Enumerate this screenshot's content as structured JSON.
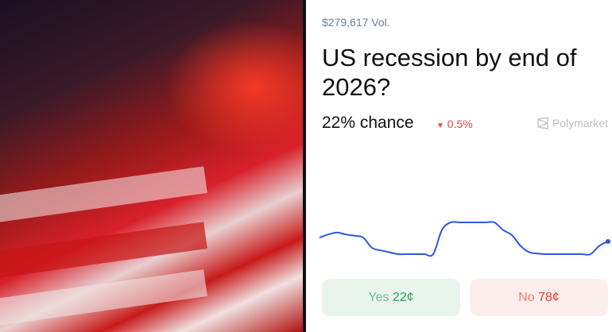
{
  "market": {
    "volume": "$279,617 Vol.",
    "title": "US recession by end of 2026?",
    "chance": "22% chance",
    "change": "0.5%",
    "change_direction": "down",
    "brand": "Polymarket"
  },
  "buttons": {
    "yes_label": "Yes",
    "yes_price": "22¢",
    "no_label": "No",
    "no_price": "78¢"
  },
  "colors": {
    "line": "#2f55e0",
    "up": "#24a85a",
    "down": "#ee3b2c"
  },
  "chart_data": {
    "type": "line",
    "series": [
      {
        "values": [
          22.6,
          23.1,
          23.4,
          23.1,
          22.9,
          22.6,
          21.0,
          20.6,
          20.3,
          20.0,
          20.0,
          20.0,
          20.0,
          20.0,
          23.8,
          25.0,
          25.0,
          25.0,
          25.0,
          25.0,
          25.0,
          23.8,
          23.0,
          21.3,
          20.3,
          20.1,
          20.0,
          20.0,
          20.0,
          20.0,
          20.0,
          20.0,
          21.3,
          22.0
        ]
      }
    ],
    "grid": false
  }
}
